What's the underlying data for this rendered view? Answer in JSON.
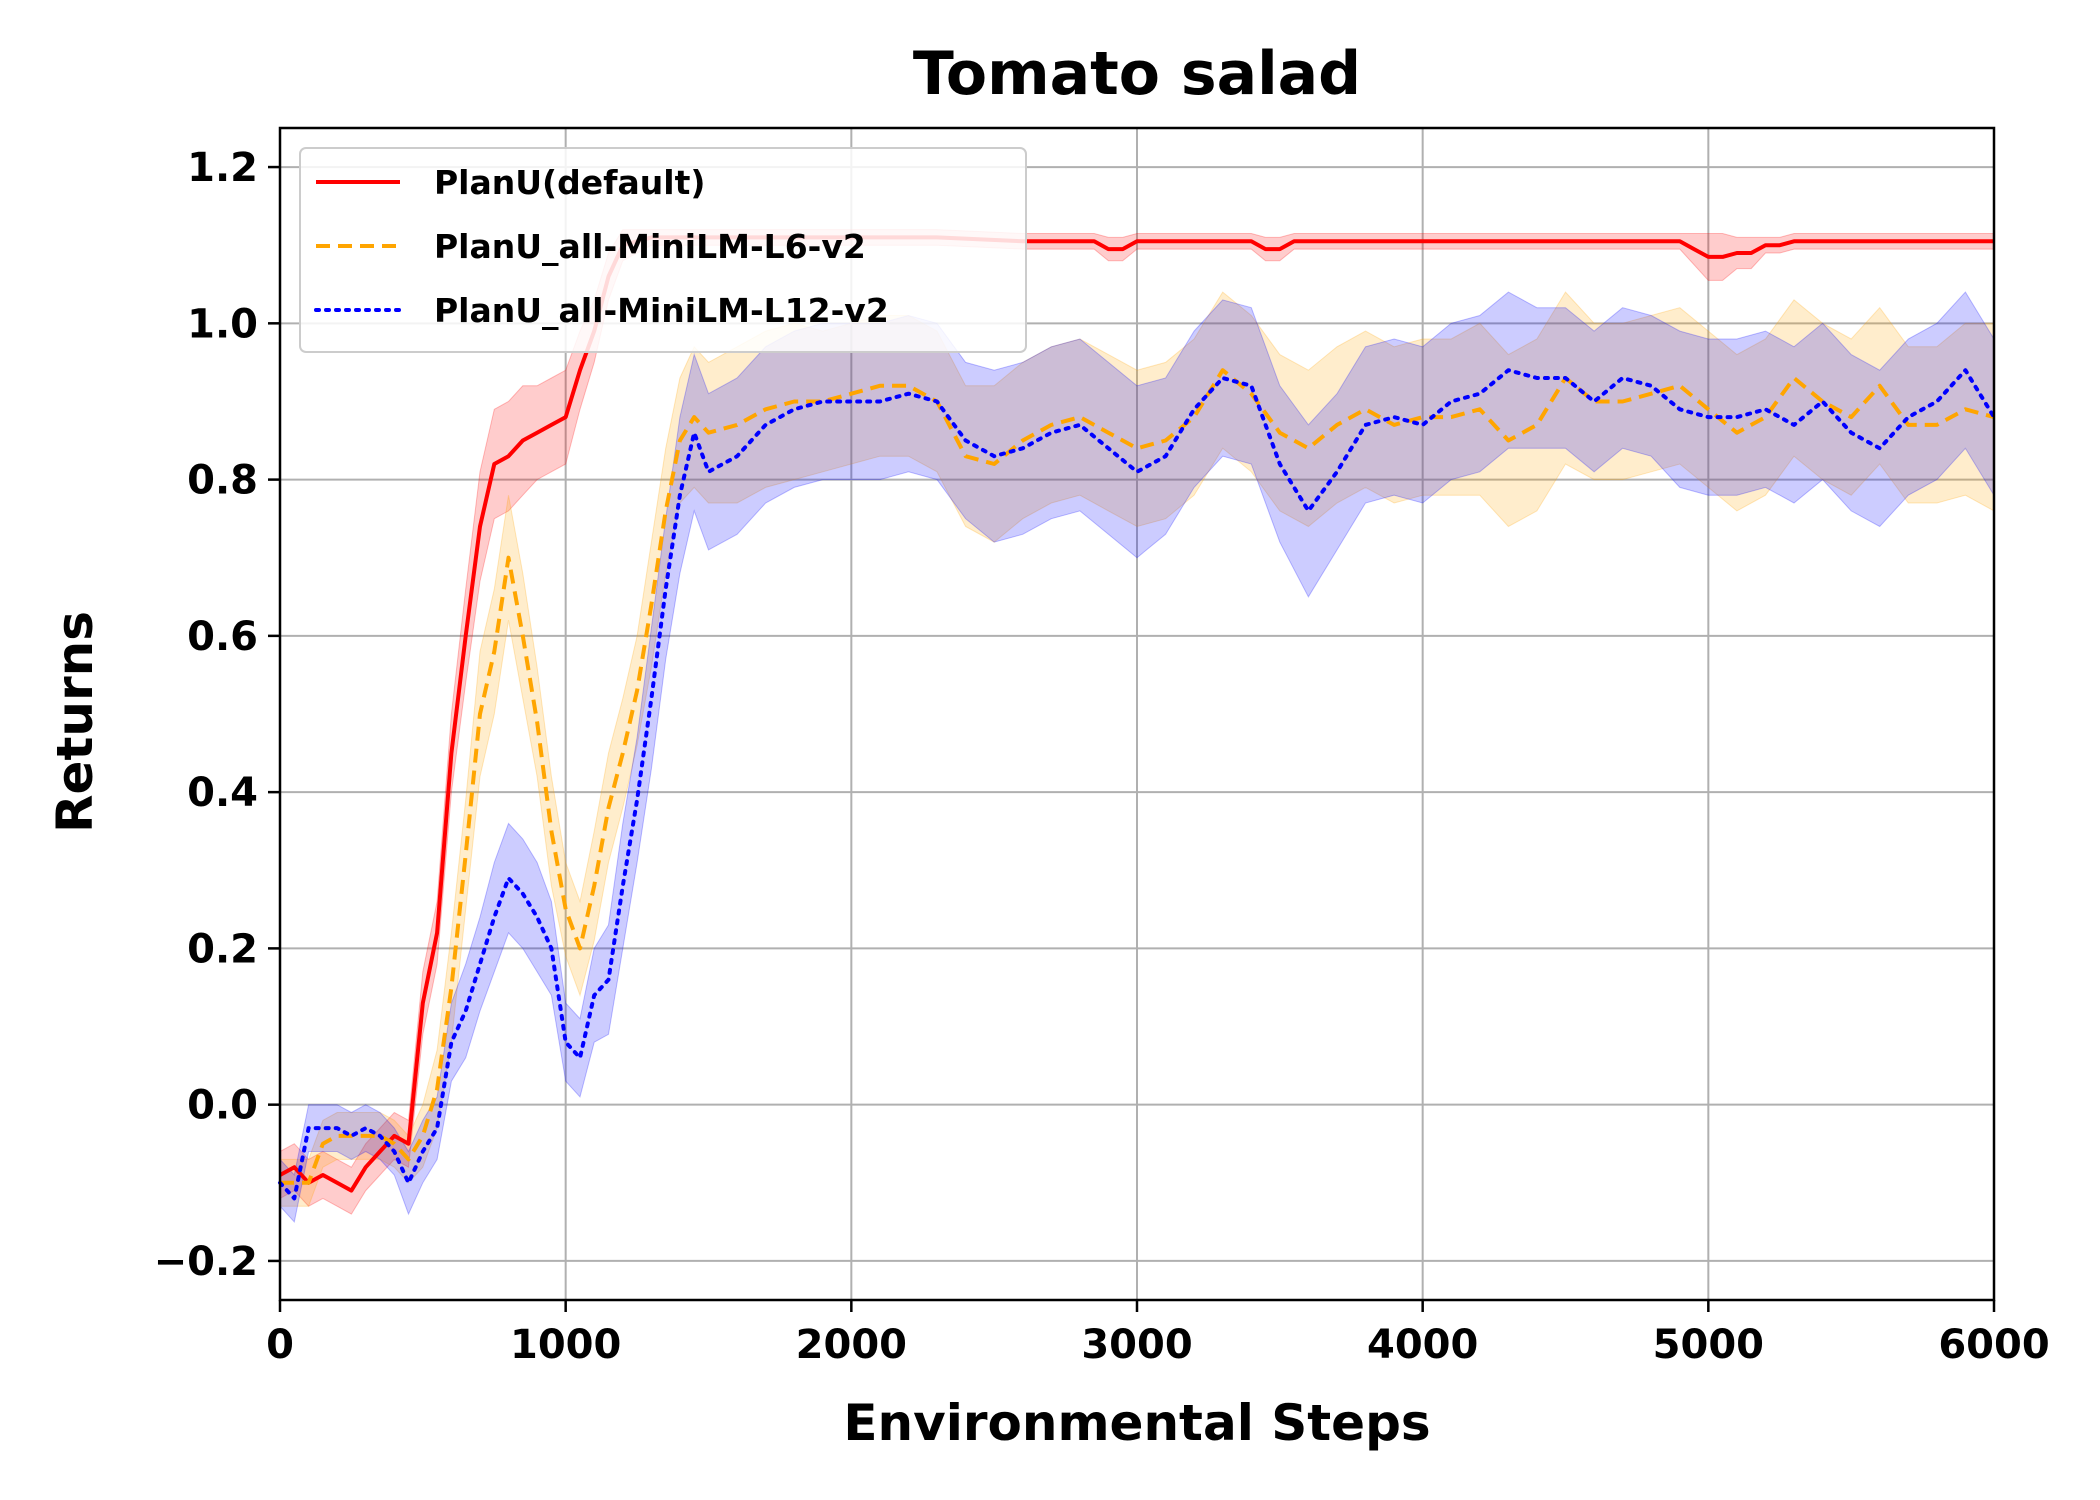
{
  "chart_data": {
    "type": "line",
    "title": "Tomato salad",
    "xlabel": "Environmental Steps",
    "ylabel": "Returns",
    "xlim": [
      0,
      6000
    ],
    "ylim": [
      -0.25,
      1.25
    ],
    "xticks": [
      0,
      1000,
      2000,
      3000,
      4000,
      5000,
      6000
    ],
    "xtick_labels": [
      "0",
      "1000",
      "2000",
      "3000",
      "4000",
      "5000",
      "6000"
    ],
    "yticks": [
      -0.2,
      0.0,
      0.2,
      0.4,
      0.6,
      0.8,
      1.0,
      1.2
    ],
    "ytick_labels": [
      "−0.2",
      "0.0",
      "0.2",
      "0.4",
      "0.6",
      "0.8",
      "1.0",
      "1.2"
    ],
    "grid": true,
    "legend_position": "top-left",
    "series": [
      {
        "name": "PlanU(default)",
        "color": "#ff0000",
        "line_style": "solid",
        "x": [
          0,
          50,
          100,
          150,
          200,
          250,
          300,
          350,
          400,
          450,
          500,
          550,
          600,
          650,
          700,
          750,
          800,
          850,
          900,
          950,
          1000,
          1050,
          1100,
          1150,
          1200,
          1300,
          1400,
          1500,
          1700,
          2000,
          2300,
          2600,
          2850,
          2900,
          2950,
          3000,
          3100,
          3200,
          3400,
          3450,
          3500,
          3550,
          3650,
          3800,
          4000,
          4500,
          4900,
          4950,
          5000,
          5050,
          5100,
          5150,
          5200,
          5250,
          5300,
          5500,
          6000
        ],
        "y": [
          -0.09,
          -0.08,
          -0.1,
          -0.09,
          -0.1,
          -0.11,
          -0.08,
          -0.06,
          -0.04,
          -0.05,
          0.13,
          0.22,
          0.45,
          0.6,
          0.74,
          0.82,
          0.83,
          0.85,
          0.86,
          0.87,
          0.88,
          0.94,
          0.99,
          1.06,
          1.1,
          1.11,
          1.11,
          1.11,
          1.11,
          1.11,
          1.11,
          1.105,
          1.105,
          1.095,
          1.095,
          1.105,
          1.105,
          1.105,
          1.105,
          1.095,
          1.095,
          1.105,
          1.105,
          1.105,
          1.105,
          1.105,
          1.105,
          1.095,
          1.085,
          1.085,
          1.09,
          1.09,
          1.1,
          1.1,
          1.105,
          1.105,
          1.105
        ],
        "band_halfwidth": [
          0.03,
          0.03,
          0.03,
          0.03,
          0.03,
          0.03,
          0.03,
          0.03,
          0.03,
          0.03,
          0.04,
          0.04,
          0.05,
          0.06,
          0.07,
          0.07,
          0.07,
          0.07,
          0.06,
          0.06,
          0.06,
          0.05,
          0.04,
          0.03,
          0.02,
          0.01,
          0.01,
          0.01,
          0.01,
          0.01,
          0.01,
          0.01,
          0.01,
          0.015,
          0.015,
          0.01,
          0.01,
          0.01,
          0.01,
          0.015,
          0.015,
          0.01,
          0.01,
          0.01,
          0.01,
          0.01,
          0.01,
          0.02,
          0.03,
          0.03,
          0.02,
          0.02,
          0.01,
          0.01,
          0.01,
          0.01,
          0.01
        ]
      },
      {
        "name": "PlanU_all-MiniLM-L6-v2",
        "color": "#ffa500",
        "line_style": "dashed",
        "x": [
          0,
          50,
          100,
          150,
          200,
          250,
          300,
          350,
          400,
          450,
          500,
          550,
          600,
          650,
          700,
          750,
          800,
          850,
          900,
          950,
          1000,
          1050,
          1100,
          1150,
          1200,
          1250,
          1300,
          1350,
          1400,
          1450,
          1500,
          1600,
          1700,
          1800,
          1900,
          2000,
          2100,
          2200,
          2300,
          2400,
          2500,
          2600,
          2700,
          2800,
          2900,
          3000,
          3100,
          3200,
          3300,
          3400,
          3500,
          3600,
          3700,
          3800,
          3900,
          4000,
          4100,
          4200,
          4300,
          4400,
          4500,
          4600,
          4700,
          4800,
          4900,
          5000,
          5100,
          5200,
          5300,
          5400,
          5500,
          5600,
          5700,
          5800,
          5900,
          6000
        ],
        "y": [
          -0.1,
          -0.1,
          -0.1,
          -0.05,
          -0.04,
          -0.04,
          -0.04,
          -0.04,
          -0.05,
          -0.07,
          -0.04,
          0.02,
          0.15,
          0.32,
          0.5,
          0.58,
          0.7,
          0.6,
          0.49,
          0.35,
          0.25,
          0.2,
          0.28,
          0.38,
          0.45,
          0.53,
          0.64,
          0.76,
          0.85,
          0.88,
          0.86,
          0.87,
          0.89,
          0.9,
          0.9,
          0.91,
          0.92,
          0.92,
          0.9,
          0.83,
          0.82,
          0.85,
          0.87,
          0.88,
          0.86,
          0.84,
          0.85,
          0.88,
          0.94,
          0.91,
          0.86,
          0.84,
          0.87,
          0.89,
          0.87,
          0.88,
          0.88,
          0.89,
          0.85,
          0.87,
          0.93,
          0.9,
          0.9,
          0.91,
          0.92,
          0.89,
          0.86,
          0.88,
          0.93,
          0.9,
          0.88,
          0.92,
          0.87,
          0.87,
          0.89,
          0.88
        ],
        "band_halfwidth": [
          0.03,
          0.03,
          0.03,
          0.03,
          0.03,
          0.03,
          0.03,
          0.03,
          0.03,
          0.03,
          0.04,
          0.05,
          0.07,
          0.07,
          0.08,
          0.08,
          0.08,
          0.08,
          0.07,
          0.07,
          0.06,
          0.06,
          0.07,
          0.07,
          0.07,
          0.07,
          0.08,
          0.08,
          0.08,
          0.09,
          0.09,
          0.1,
          0.1,
          0.1,
          0.09,
          0.09,
          0.09,
          0.09,
          0.09,
          0.09,
          0.1,
          0.1,
          0.1,
          0.1,
          0.1,
          0.1,
          0.1,
          0.1,
          0.1,
          0.1,
          0.1,
          0.1,
          0.1,
          0.1,
          0.1,
          0.1,
          0.1,
          0.11,
          0.11,
          0.11,
          0.11,
          0.1,
          0.1,
          0.1,
          0.1,
          0.1,
          0.1,
          0.1,
          0.1,
          0.1,
          0.1,
          0.1,
          0.1,
          0.1,
          0.11,
          0.12
        ]
      },
      {
        "name": "PlanU_all-MiniLM-L12-v2",
        "color": "#0000ff",
        "line_style": "dotted",
        "x": [
          0,
          50,
          100,
          150,
          200,
          250,
          300,
          350,
          400,
          450,
          500,
          550,
          600,
          650,
          700,
          750,
          800,
          850,
          900,
          950,
          1000,
          1050,
          1100,
          1150,
          1200,
          1250,
          1300,
          1350,
          1400,
          1450,
          1500,
          1600,
          1700,
          1800,
          1900,
          2000,
          2100,
          2200,
          2300,
          2400,
          2500,
          2600,
          2700,
          2800,
          2900,
          3000,
          3100,
          3200,
          3300,
          3400,
          3500,
          3600,
          3700,
          3800,
          3900,
          4000,
          4100,
          4200,
          4300,
          4400,
          4500,
          4600,
          4700,
          4800,
          4900,
          5000,
          5100,
          5200,
          5300,
          5400,
          5500,
          5600,
          5700,
          5800,
          5900,
          6000
        ],
        "y": [
          -0.1,
          -0.12,
          -0.03,
          -0.03,
          -0.03,
          -0.04,
          -0.03,
          -0.04,
          -0.06,
          -0.1,
          -0.06,
          -0.03,
          0.08,
          0.12,
          0.18,
          0.24,
          0.29,
          0.27,
          0.24,
          0.2,
          0.08,
          0.06,
          0.14,
          0.16,
          0.28,
          0.39,
          0.52,
          0.66,
          0.78,
          0.86,
          0.81,
          0.83,
          0.87,
          0.89,
          0.9,
          0.9,
          0.9,
          0.91,
          0.9,
          0.85,
          0.83,
          0.84,
          0.86,
          0.87,
          0.84,
          0.81,
          0.83,
          0.89,
          0.93,
          0.92,
          0.82,
          0.76,
          0.81,
          0.87,
          0.88,
          0.87,
          0.9,
          0.91,
          0.94,
          0.93,
          0.93,
          0.9,
          0.93,
          0.92,
          0.89,
          0.88,
          0.88,
          0.89,
          0.87,
          0.9,
          0.86,
          0.84,
          0.88,
          0.9,
          0.94,
          0.88
        ],
        "band_halfwidth": [
          0.03,
          0.03,
          0.03,
          0.03,
          0.03,
          0.03,
          0.03,
          0.03,
          0.03,
          0.04,
          0.04,
          0.04,
          0.05,
          0.06,
          0.06,
          0.07,
          0.07,
          0.07,
          0.07,
          0.06,
          0.05,
          0.05,
          0.06,
          0.07,
          0.08,
          0.08,
          0.09,
          0.09,
          0.1,
          0.1,
          0.1,
          0.1,
          0.1,
          0.1,
          0.1,
          0.1,
          0.1,
          0.1,
          0.1,
          0.1,
          0.11,
          0.11,
          0.11,
          0.11,
          0.11,
          0.11,
          0.1,
          0.1,
          0.1,
          0.1,
          0.1,
          0.11,
          0.1,
          0.1,
          0.1,
          0.1,
          0.1,
          0.1,
          0.1,
          0.09,
          0.09,
          0.09,
          0.09,
          0.09,
          0.1,
          0.1,
          0.1,
          0.1,
          0.1,
          0.1,
          0.1,
          0.1,
          0.1,
          0.1,
          0.1,
          0.1
        ]
      }
    ]
  }
}
